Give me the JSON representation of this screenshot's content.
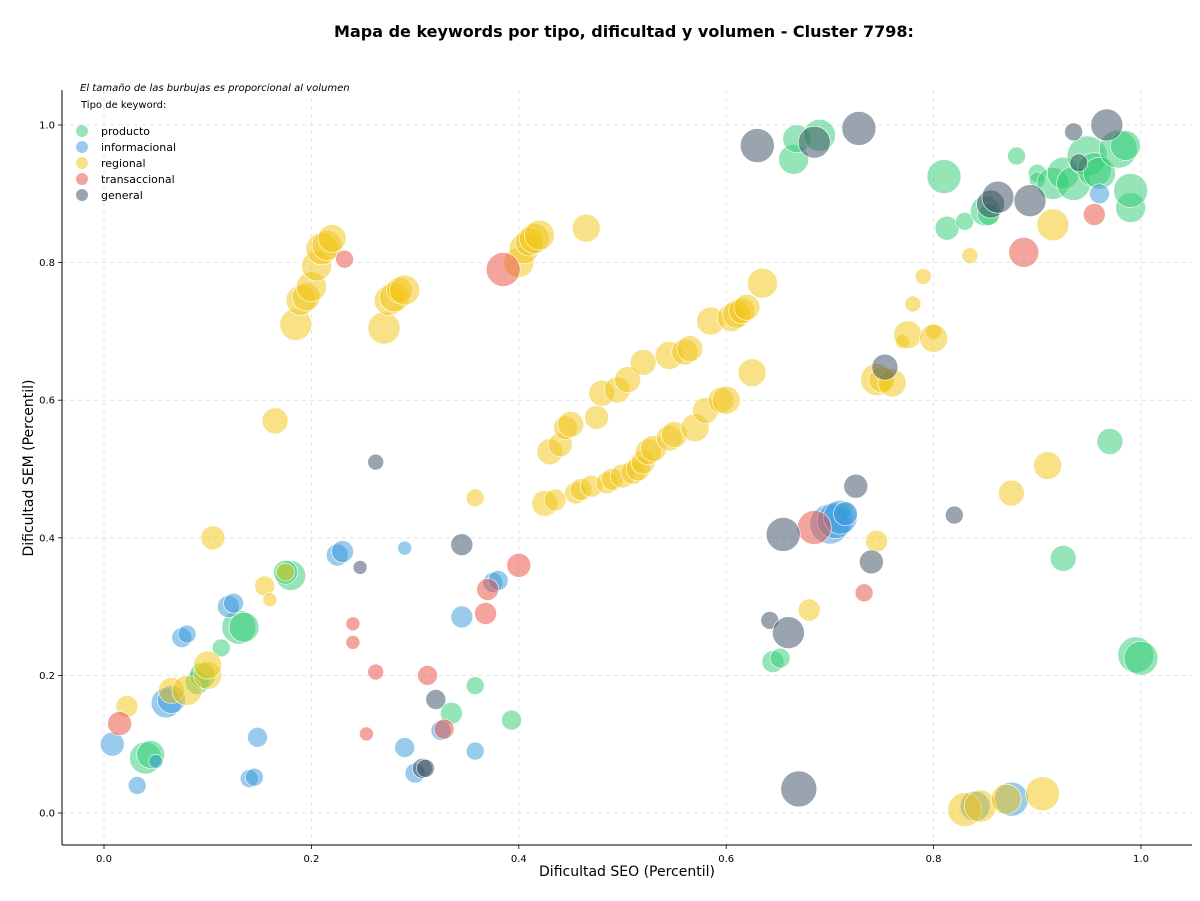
{
  "colors": {
    "producto": "#2ecc71",
    "informacional": "#3498db",
    "regional": "#f1c40f",
    "transaccional": "#e74c3c",
    "general": "#34495e"
  },
  "chart_data": {
    "type": "scatter",
    "title": "Mapa de keywords por tipo, dificultad y volumen - Cluster 7798:",
    "xlabel": "Dificultad SEO (Percentil)",
    "ylabel": "Dificultad SEM (Percentil)",
    "xlim": [
      -0.04,
      1.05
    ],
    "ylim": [
      -0.045,
      1.05
    ],
    "xticks": [
      "0.0",
      "0.2",
      "0.4",
      "0.6",
      "0.8",
      "1.0"
    ],
    "yticks": [
      "0.0",
      "0.2",
      "0.4",
      "0.6",
      "0.8",
      "1.0"
    ],
    "grid": true,
    "note": "El tamaño de las burbujas es proporcional al volumen",
    "legend_title": "Tipo de keyword:",
    "legend_position": "top-left",
    "series": [
      {
        "name": "producto",
        "points": [
          [
            0.04,
            0.08,
            16
          ],
          [
            0.045,
            0.085,
            14
          ],
          [
            0.09,
            0.19,
            12
          ],
          [
            0.095,
            0.2,
            13
          ],
          [
            0.113,
            0.24,
            9
          ],
          [
            0.13,
            0.27,
            17
          ],
          [
            0.135,
            0.27,
            15
          ],
          [
            0.18,
            0.345,
            15
          ],
          [
            0.175,
            0.35,
            12
          ],
          [
            0.335,
            0.145,
            11
          ],
          [
            0.358,
            0.185,
            9
          ],
          [
            0.393,
            0.135,
            10
          ],
          [
            0.645,
            0.22,
            11
          ],
          [
            0.652,
            0.225,
            10
          ],
          [
            0.665,
            0.95,
            15
          ],
          [
            0.668,
            0.98,
            14
          ],
          [
            0.69,
            0.985,
            16
          ],
          [
            0.715,
            0.44,
            7
          ],
          [
            0.81,
            0.925,
            17
          ],
          [
            0.813,
            0.85,
            12
          ],
          [
            0.83,
            0.86,
            9
          ],
          [
            0.85,
            0.875,
            15
          ],
          [
            0.853,
            0.87,
            11
          ],
          [
            0.88,
            0.955,
            9
          ],
          [
            0.9,
            0.93,
            9
          ],
          [
            0.9,
            0.92,
            8
          ],
          [
            0.915,
            0.915,
            16
          ],
          [
            0.925,
            0.93,
            16
          ],
          [
            0.935,
            0.915,
            17
          ],
          [
            0.948,
            0.955,
            20
          ],
          [
            0.955,
            0.935,
            17
          ],
          [
            0.96,
            0.93,
            16
          ],
          [
            0.97,
            0.54,
            13
          ],
          [
            0.978,
            0.965,
            19
          ],
          [
            0.985,
            0.97,
            15
          ],
          [
            0.99,
            0.88,
            15
          ],
          [
            0.99,
            0.905,
            17
          ],
          [
            0.925,
            0.37,
            13
          ],
          [
            0.995,
            0.23,
            18
          ],
          [
            1.0,
            0.225,
            17
          ]
        ]
      },
      {
        "name": "informacional",
        "points": [
          [
            0.008,
            0.1,
            12
          ],
          [
            0.032,
            0.04,
            9
          ],
          [
            0.05,
            0.075,
            7
          ],
          [
            0.06,
            0.16,
            15
          ],
          [
            0.065,
            0.165,
            14
          ],
          [
            0.075,
            0.255,
            10
          ],
          [
            0.08,
            0.26,
            9
          ],
          [
            0.12,
            0.3,
            11
          ],
          [
            0.125,
            0.305,
            10
          ],
          [
            0.14,
            0.05,
            9
          ],
          [
            0.145,
            0.052,
            9
          ],
          [
            0.148,
            0.11,
            10
          ],
          [
            0.225,
            0.375,
            11
          ],
          [
            0.23,
            0.38,
            11
          ],
          [
            0.29,
            0.385,
            7
          ],
          [
            0.29,
            0.095,
            10
          ],
          [
            0.3,
            0.058,
            10
          ],
          [
            0.325,
            0.12,
            10
          ],
          [
            0.345,
            0.285,
            11
          ],
          [
            0.358,
            0.09,
            9
          ],
          [
            0.375,
            0.335,
            10
          ],
          [
            0.38,
            0.338,
            10
          ],
          [
            0.7,
            0.42,
            20
          ],
          [
            0.705,
            0.425,
            18
          ],
          [
            0.71,
            0.43,
            17
          ],
          [
            0.715,
            0.435,
            12
          ],
          [
            0.84,
            0.01,
            15
          ],
          [
            0.875,
            0.02,
            17
          ],
          [
            0.96,
            0.9,
            10
          ]
        ]
      },
      {
        "name": "regional",
        "points": [
          [
            0.022,
            0.155,
            11
          ],
          [
            0.065,
            0.178,
            13
          ],
          [
            0.08,
            0.178,
            15
          ],
          [
            0.1,
            0.2,
            14
          ],
          [
            0.1,
            0.215,
            14
          ],
          [
            0.105,
            0.4,
            12
          ],
          [
            0.155,
            0.33,
            10
          ],
          [
            0.16,
            0.31,
            7
          ],
          [
            0.165,
            0.57,
            13
          ],
          [
            0.175,
            0.35,
            9
          ],
          [
            0.185,
            0.71,
            16
          ],
          [
            0.19,
            0.745,
            15
          ],
          [
            0.195,
            0.75,
            14
          ],
          [
            0.2,
            0.765,
            15
          ],
          [
            0.205,
            0.795,
            15
          ],
          [
            0.21,
            0.82,
            16
          ],
          [
            0.215,
            0.825,
            15
          ],
          [
            0.22,
            0.835,
            14
          ],
          [
            0.27,
            0.705,
            16
          ],
          [
            0.275,
            0.745,
            15
          ],
          [
            0.28,
            0.75,
            15
          ],
          [
            0.285,
            0.76,
            13
          ],
          [
            0.29,
            0.76,
            15
          ],
          [
            0.358,
            0.458,
            9
          ],
          [
            0.425,
            0.45,
            13
          ],
          [
            0.43,
            0.525,
            13
          ],
          [
            0.435,
            0.455,
            11
          ],
          [
            0.44,
            0.535,
            12
          ],
          [
            0.445,
            0.56,
            12
          ],
          [
            0.45,
            0.565,
            13
          ],
          [
            0.455,
            0.465,
            11
          ],
          [
            0.46,
            0.47,
            11
          ],
          [
            0.465,
            0.85,
            14
          ],
          [
            0.47,
            0.475,
            11
          ],
          [
            0.475,
            0.575,
            12
          ],
          [
            0.48,
            0.61,
            13
          ],
          [
            0.485,
            0.48,
            11
          ],
          [
            0.49,
            0.485,
            11
          ],
          [
            0.495,
            0.615,
            13
          ],
          [
            0.5,
            0.49,
            12
          ],
          [
            0.505,
            0.63,
            13
          ],
          [
            0.51,
            0.495,
            12
          ],
          [
            0.515,
            0.5,
            12
          ],
          [
            0.52,
            0.51,
            12
          ],
          [
            0.52,
            0.655,
            13
          ],
          [
            0.525,
            0.525,
            13
          ],
          [
            0.53,
            0.53,
            13
          ],
          [
            0.545,
            0.665,
            14
          ],
          [
            0.545,
            0.545,
            13
          ],
          [
            0.55,
            0.55,
            13
          ],
          [
            0.56,
            0.67,
            13
          ],
          [
            0.565,
            0.675,
            13
          ],
          [
            0.57,
            0.56,
            14
          ],
          [
            0.58,
            0.585,
            13
          ],
          [
            0.585,
            0.715,
            14
          ],
          [
            0.595,
            0.6,
            13
          ],
          [
            0.6,
            0.6,
            14
          ],
          [
            0.605,
            0.72,
            14
          ],
          [
            0.61,
            0.725,
            14
          ],
          [
            0.615,
            0.73,
            13
          ],
          [
            0.62,
            0.735,
            13
          ],
          [
            0.625,
            0.64,
            14
          ],
          [
            0.635,
            0.77,
            15
          ],
          [
            0.4,
            0.8,
            15
          ],
          [
            0.405,
            0.82,
            15
          ],
          [
            0.41,
            0.83,
            14
          ],
          [
            0.415,
            0.835,
            15
          ],
          [
            0.42,
            0.84,
            15
          ],
          [
            0.68,
            0.295,
            11
          ],
          [
            0.745,
            0.395,
            11
          ],
          [
            0.745,
            0.63,
            16
          ],
          [
            0.75,
            0.63,
            13
          ],
          [
            0.76,
            0.625,
            14
          ],
          [
            0.77,
            0.685,
            7
          ],
          [
            0.775,
            0.695,
            14
          ],
          [
            0.78,
            0.74,
            8
          ],
          [
            0.79,
            0.78,
            8
          ],
          [
            0.8,
            0.7,
            8
          ],
          [
            0.8,
            0.69,
            14
          ],
          [
            0.835,
            0.81,
            8
          ],
          [
            0.83,
            0.005,
            17
          ],
          [
            0.845,
            0.01,
            16
          ],
          [
            0.87,
            0.02,
            15
          ],
          [
            0.875,
            0.465,
            13
          ],
          [
            0.91,
            0.505,
            14
          ],
          [
            0.915,
            0.855,
            16
          ],
          [
            0.905,
            0.028,
            17
          ]
        ]
      },
      {
        "name": "transaccional",
        "points": [
          [
            0.015,
            0.13,
            12
          ],
          [
            0.232,
            0.805,
            9
          ],
          [
            0.24,
            0.275,
            7
          ],
          [
            0.24,
            0.248,
            7
          ],
          [
            0.253,
            0.115,
            7
          ],
          [
            0.262,
            0.205,
            8
          ],
          [
            0.312,
            0.2,
            10
          ],
          [
            0.328,
            0.122,
            10
          ],
          [
            0.368,
            0.29,
            11
          ],
          [
            0.37,
            0.325,
            11
          ],
          [
            0.385,
            0.79,
            17
          ],
          [
            0.4,
            0.36,
            12
          ],
          [
            0.685,
            0.415,
            17
          ],
          [
            0.733,
            0.32,
            9
          ],
          [
            0.887,
            0.815,
            15
          ],
          [
            0.955,
            0.87,
            11
          ]
        ]
      },
      {
        "name": "general",
        "points": [
          [
            0.247,
            0.357,
            7
          ],
          [
            0.262,
            0.51,
            8
          ],
          [
            0.307,
            0.065,
            10
          ],
          [
            0.31,
            0.065,
            9
          ],
          [
            0.32,
            0.165,
            10
          ],
          [
            0.345,
            0.39,
            11
          ],
          [
            0.63,
            0.97,
            17
          ],
          [
            0.642,
            0.28,
            9
          ],
          [
            0.655,
            0.405,
            17
          ],
          [
            0.66,
            0.262,
            16
          ],
          [
            0.67,
            0.035,
            18
          ],
          [
            0.685,
            0.975,
            16
          ],
          [
            0.725,
            0.475,
            12
          ],
          [
            0.728,
            0.995,
            17
          ],
          [
            0.74,
            0.365,
            12
          ],
          [
            0.753,
            0.648,
            13
          ],
          [
            0.82,
            0.433,
            9
          ],
          [
            0.855,
            0.885,
            14
          ],
          [
            0.862,
            0.895,
            16
          ],
          [
            0.893,
            0.89,
            16
          ],
          [
            0.935,
            0.99,
            9
          ],
          [
            0.94,
            0.945,
            9
          ],
          [
            0.967,
            1.0,
            16
          ]
        ]
      }
    ]
  }
}
